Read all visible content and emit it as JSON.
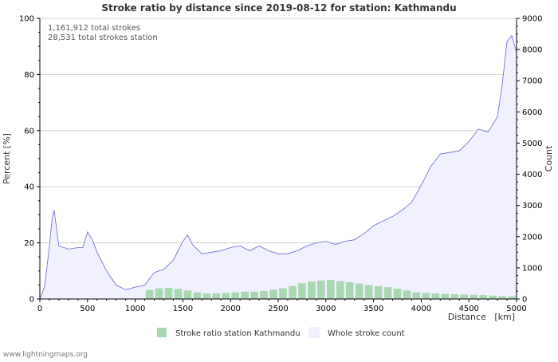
{
  "chart_data": {
    "type": "area",
    "title": "Stroke ratio by distance since 2019-08-12 for station: Kathmandu",
    "annotations": [
      "1,161,912 total strokes",
      "28,531 total strokes station"
    ],
    "xlabel": "Distance   [km]",
    "ylabel_left": "Percent   [%]",
    "ylabel_right": "Count",
    "xlim": [
      0,
      5000
    ],
    "ylim_left": [
      0,
      100
    ],
    "ylim_right": [
      0,
      9000
    ],
    "x_ticks": [
      0,
      500,
      1000,
      1500,
      2000,
      2500,
      3000,
      3500,
      4000,
      4500,
      5000
    ],
    "y_left_ticks": [
      0,
      20,
      40,
      60,
      80,
      100
    ],
    "y_right_ticks": [
      0,
      1000,
      2000,
      3000,
      4000,
      5000,
      6000,
      7000,
      8000,
      9000
    ],
    "grid": true,
    "legend_position": "bottom",
    "series": [
      {
        "name": "Stroke ratio station Kathmandu",
        "axis": "left",
        "kind": "bar",
        "color": "#a8d8b0",
        "x": [
          1150,
          1250,
          1350,
          1450,
          1550,
          1650,
          1750,
          1850,
          1950,
          2050,
          2150,
          2250,
          2350,
          2450,
          2550,
          2650,
          2750,
          2850,
          2950,
          3050,
          3150,
          3250,
          3350,
          3450,
          3550,
          3650,
          3750,
          3850,
          3950,
          4050,
          4150,
          4250,
          4350,
          4450,
          4550,
          4650,
          4750,
          4850,
          4950
        ],
        "values": [
          3.2,
          3.8,
          4.0,
          3.6,
          3.0,
          2.4,
          2.0,
          2.0,
          2.2,
          2.4,
          2.6,
          2.6,
          2.9,
          3.3,
          3.8,
          4.6,
          5.6,
          6.2,
          6.6,
          6.8,
          6.4,
          6.0,
          5.5,
          5.0,
          4.6,
          4.2,
          3.6,
          3.0,
          2.4,
          2.2,
          2.0,
          1.8,
          1.7,
          1.6,
          1.5,
          1.4,
          1.2,
          1.0,
          0.9
        ]
      },
      {
        "name": "Whole stroke count",
        "axis": "right",
        "kind": "area",
        "color": "#f0f0ff",
        "line_color": "#6464d8",
        "x": [
          0,
          50,
          100,
          130,
          150,
          200,
          300,
          400,
          450,
          500,
          550,
          600,
          700,
          800,
          900,
          1000,
          1100,
          1200,
          1300,
          1400,
          1500,
          1550,
          1600,
          1700,
          1800,
          1900,
          2000,
          2100,
          2200,
          2300,
          2400,
          2500,
          2600,
          2700,
          2800,
          2900,
          3000,
          3100,
          3200,
          3300,
          3400,
          3500,
          3600,
          3700,
          3800,
          3900,
          4000,
          4100,
          4200,
          4300,
          4400,
          4500,
          4600,
          4700,
          4800,
          4850,
          4900,
          4950,
          5000
        ],
        "values": [
          0,
          400,
          1700,
          2600,
          2850,
          1700,
          1600,
          1650,
          1650,
          2150,
          1900,
          1500,
          900,
          450,
          300,
          380,
          450,
          850,
          950,
          1250,
          1850,
          2050,
          1750,
          1450,
          1500,
          1550,
          1650,
          1700,
          1550,
          1700,
          1550,
          1450,
          1450,
          1550,
          1700,
          1800,
          1850,
          1750,
          1850,
          1900,
          2100,
          2350,
          2500,
          2650,
          2850,
          3100,
          3650,
          4250,
          4650,
          4700,
          4750,
          5050,
          5450,
          5350,
          5850,
          6900,
          8250,
          8450,
          7900
        ]
      }
    ]
  },
  "footer": {
    "watermark": "www.lightningmaps.org"
  },
  "colors": {
    "grid": "#d0d0d0",
    "axis": "#000000",
    "text": "#333333",
    "annotation": "#555555"
  }
}
